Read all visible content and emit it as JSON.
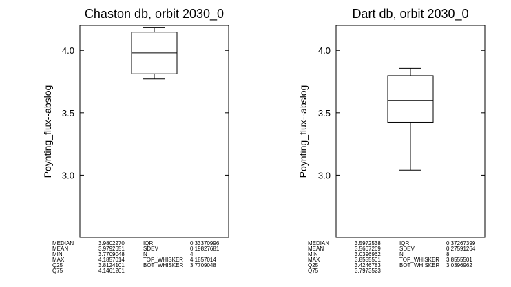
{
  "chart_data": [
    {
      "type": "box",
      "title": "Chaston db, orbit 2030_0",
      "ylabel": "Poynting_flux--abslog",
      "xlabel": "",
      "ylim": [
        2.5,
        4.2
      ],
      "yticks": [
        3.0,
        3.5,
        4.0
      ],
      "ytick_labels": [
        "3.0",
        "3.5",
        "4.0"
      ],
      "grid": false,
      "box": {
        "whisker_low": 3.7709048,
        "q25": 3.8124101,
        "median": 3.980227,
        "q75": 4.1461201,
        "whisker_high": 4.1857014
      },
      "stats_table": [
        {
          "label": "MEDIAN",
          "value": "3.9802270",
          "label2": "IQR",
          "value2": "0.33370996"
        },
        {
          "label": "MEAN",
          "value": "3.9792651",
          "label2": "SDEV",
          "value2": "0.19827681"
        },
        {
          "label": "MIN",
          "value": "3.7709048",
          "label2": "N",
          "value2": "4"
        },
        {
          "label": "MAX",
          "value": "4.1857014",
          "label2": "TOP_WHISKER",
          "value2": "4.1857014"
        },
        {
          "label": "Q25",
          "value": "3.8124101",
          "label2": "BOT_WHISKER",
          "value2": "3.7709048"
        },
        {
          "label": "Q75",
          "value": "4.1461201",
          "label2": "",
          "value2": ""
        }
      ]
    },
    {
      "type": "box",
      "title": "Dart db, orbit 2030_0",
      "ylabel": "Poynting_flux--abslog",
      "xlabel": "",
      "ylim": [
        2.5,
        4.2
      ],
      "yticks": [
        3.0,
        3.5,
        4.0
      ],
      "ytick_labels": [
        "3.0",
        "3.5",
        "4.0"
      ],
      "grid": false,
      "box": {
        "whisker_low": 3.0396962,
        "q25": 3.4246783,
        "median": 3.5972538,
        "q75": 3.7973523,
        "whisker_high": 3.8555501
      },
      "stats_table": [
        {
          "label": "MEDIAN",
          "value": "3.5972538",
          "label2": "IQR",
          "value2": "0.37267399"
        },
        {
          "label": "MEAN",
          "value": "3.5667269",
          "label2": "SDEV",
          "value2": "0.27591264"
        },
        {
          "label": "MIN",
          "value": "3.0396962",
          "label2": "N",
          "value2": "8"
        },
        {
          "label": "MAX",
          "value": "3.8555501",
          "label2": "TOP_WHISKER",
          "value2": "3.8555501"
        },
        {
          "label": "Q25",
          "value": "3.4246783",
          "label2": "BOT_WHISKER",
          "value2": "3.0396962"
        },
        {
          "label": "Q75",
          "value": "3.7973523",
          "label2": "",
          "value2": ""
        }
      ]
    }
  ]
}
